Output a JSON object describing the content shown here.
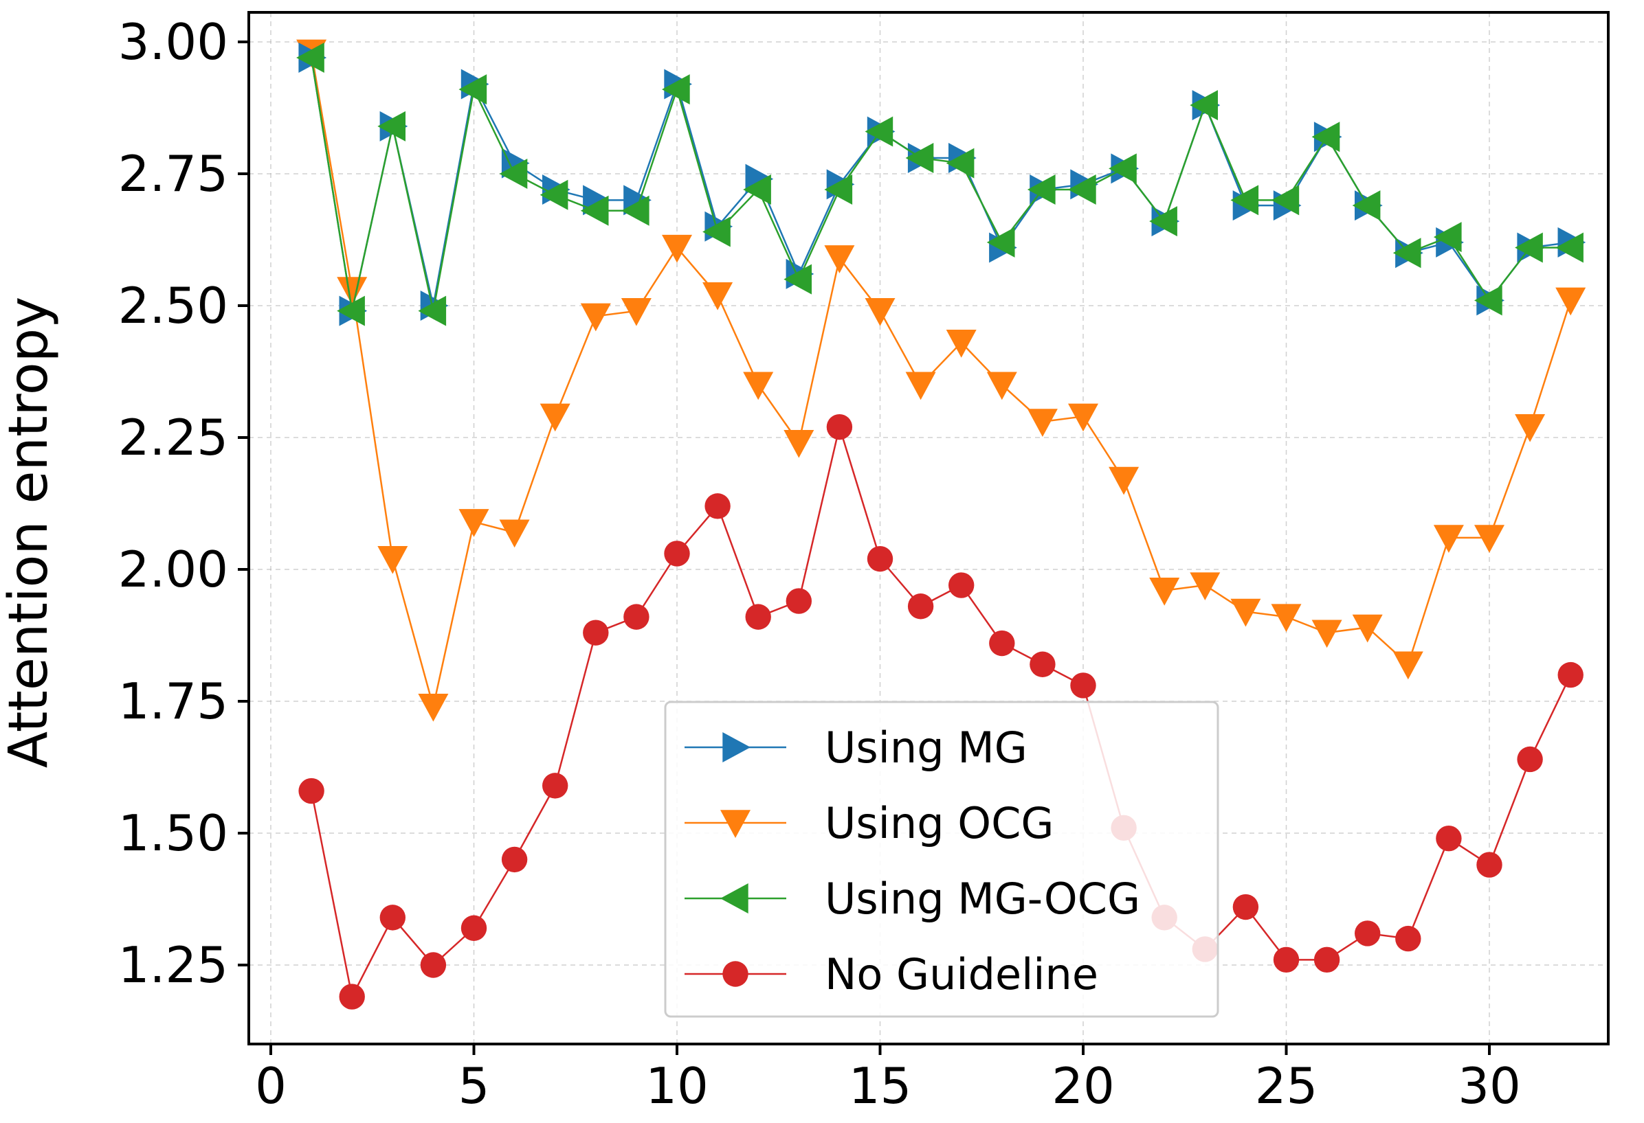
{
  "chart_data": {
    "type": "line",
    "title": "",
    "xlabel": "",
    "ylabel": "Attention entropy",
    "xlim": [
      -0.5,
      33.5
    ],
    "ylim": [
      1.1,
      3.05
    ],
    "xticks": [
      0,
      5,
      10,
      15,
      20,
      25,
      30
    ],
    "yticks": [
      1.25,
      1.5,
      1.75,
      2.0,
      2.25,
      2.5,
      2.75,
      3.0
    ],
    "xtick_labels": [
      "0",
      "5",
      "10",
      "15",
      "20",
      "25",
      "30"
    ],
    "ytick_labels": [
      "1.25",
      "1.50",
      "1.75",
      "2.00",
      "2.25",
      "2.50",
      "2.75",
      "3.00"
    ],
    "grid": true,
    "legend_position": "lower-center",
    "x": [
      1,
      2,
      3,
      4,
      5,
      6,
      7,
      8,
      9,
      10,
      11,
      12,
      13,
      14,
      15,
      16,
      17,
      18,
      19,
      20,
      21,
      22,
      23,
      24,
      25,
      26,
      27,
      28,
      29,
      30,
      31,
      32
    ],
    "series": [
      {
        "name": "Using MG",
        "color": "#1f77b4",
        "marker": "triangle-right",
        "values": [
          2.97,
          2.49,
          2.84,
          2.5,
          2.92,
          2.77,
          2.72,
          2.7,
          2.7,
          2.92,
          2.65,
          2.74,
          2.56,
          2.73,
          2.83,
          2.78,
          2.78,
          2.61,
          2.72,
          2.73,
          2.76,
          2.66,
          2.88,
          2.69,
          2.69,
          2.82,
          2.69,
          2.6,
          2.62,
          2.51,
          2.61,
          2.62
        ]
      },
      {
        "name": "Using OCG",
        "color": "#ff7f0e",
        "marker": "triangle-down",
        "values": [
          2.98,
          2.53,
          2.02,
          1.74,
          2.09,
          2.07,
          2.29,
          2.48,
          2.49,
          2.61,
          2.52,
          2.35,
          2.24,
          2.59,
          2.49,
          2.35,
          2.43,
          2.35,
          2.28,
          2.29,
          2.17,
          1.96,
          1.97,
          1.92,
          1.91,
          1.88,
          1.89,
          1.82,
          2.06,
          2.06,
          2.27,
          2.51
        ]
      },
      {
        "name": "Using MG-OCG",
        "color": "#2ca02c",
        "marker": "triangle-left",
        "values": [
          2.97,
          2.49,
          2.84,
          2.49,
          2.91,
          2.75,
          2.71,
          2.68,
          2.68,
          2.91,
          2.64,
          2.72,
          2.55,
          2.72,
          2.83,
          2.78,
          2.77,
          2.62,
          2.72,
          2.72,
          2.76,
          2.66,
          2.88,
          2.7,
          2.7,
          2.82,
          2.69,
          2.6,
          2.63,
          2.51,
          2.61,
          2.61
        ]
      },
      {
        "name": "No Guideline",
        "color": "#d62728",
        "marker": "circle",
        "values": [
          1.58,
          1.19,
          1.34,
          1.25,
          1.32,
          1.45,
          1.59,
          1.88,
          1.91,
          2.03,
          2.12,
          1.91,
          1.94,
          2.27,
          2.02,
          1.93,
          1.97,
          1.86,
          1.82,
          1.78,
          1.51,
          1.34,
          1.28,
          1.36,
          1.26,
          1.26,
          1.31,
          1.3,
          1.49,
          1.44,
          1.64,
          1.8
        ]
      }
    ]
  }
}
